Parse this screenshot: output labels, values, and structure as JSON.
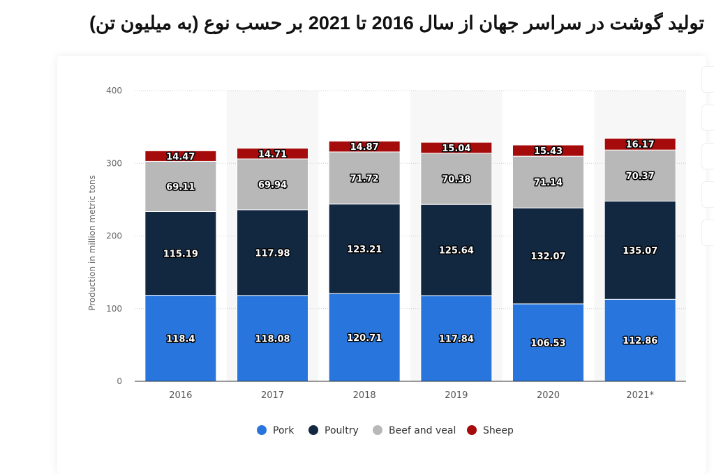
{
  "title": "تولید گوشت در سراسر جهان از سال 2016 تا 2021 بر حسب نوع (به میلیون تن)",
  "chart_data": {
    "type": "bar",
    "stacked": true,
    "categories": [
      "2016",
      "2017",
      "2018",
      "2019",
      "2020",
      "2021*"
    ],
    "series": [
      {
        "name": "Pork",
        "color": "#2876dd",
        "values": [
          118.4,
          118.08,
          120.71,
          117.84,
          106.53,
          112.86
        ]
      },
      {
        "name": "Poultry",
        "color": "#122841",
        "values": [
          115.19,
          117.98,
          123.21,
          125.64,
          132.07,
          135.07
        ]
      },
      {
        "name": "Beef and veal",
        "color": "#b8b8b8",
        "values": [
          69.11,
          69.94,
          71.72,
          70.38,
          71.14,
          70.37
        ]
      },
      {
        "name": "Sheep",
        "color": "#a60b0b",
        "values": [
          14.47,
          14.71,
          14.87,
          15.04,
          15.43,
          16.17
        ]
      }
    ],
    "ylabel": "Production in million metric tons",
    "ylim": [
      0,
      400
    ],
    "yticks": [
      0,
      100,
      200,
      300,
      400
    ],
    "grid": true,
    "legend": "bottom"
  }
}
